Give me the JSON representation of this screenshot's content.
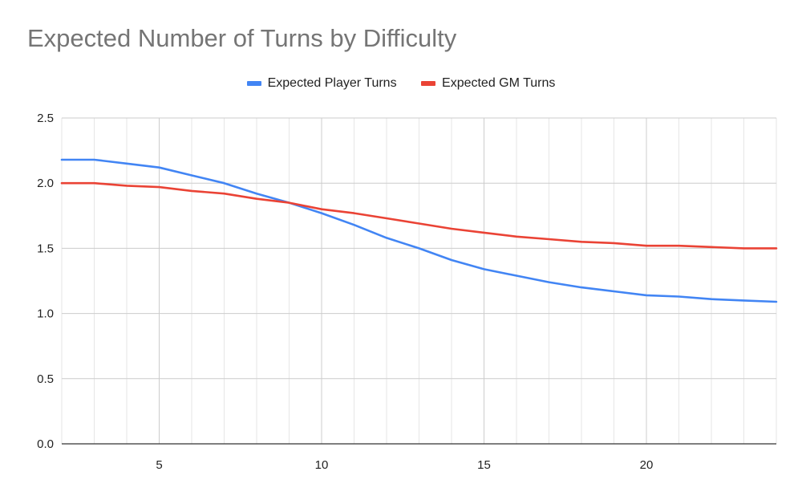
{
  "chart_data": {
    "type": "line",
    "title": "Expected Number of Turns by Difficulty",
    "xlabel": "",
    "ylabel": "",
    "xlim": [
      2,
      24
    ],
    "ylim": [
      0,
      2.5
    ],
    "x_ticks": [
      "5",
      "10",
      "15",
      "20"
    ],
    "y_ticks": [
      "0.0",
      "0.5",
      "1.0",
      "1.5",
      "2.0",
      "2.5"
    ],
    "grid": true,
    "legend_position": "top",
    "x": [
      2,
      3,
      4,
      5,
      6,
      7,
      8,
      9,
      10,
      11,
      12,
      13,
      14,
      15,
      16,
      17,
      18,
      19,
      20,
      21,
      22,
      23,
      24
    ],
    "series": [
      {
        "name": "Expected Player Turns",
        "color": "#4285f4",
        "values": [
          2.18,
          2.18,
          2.15,
          2.12,
          2.06,
          2.0,
          1.92,
          1.85,
          1.77,
          1.68,
          1.58,
          1.5,
          1.41,
          1.34,
          1.29,
          1.24,
          1.2,
          1.17,
          1.14,
          1.13,
          1.11,
          1.1,
          1.09
        ]
      },
      {
        "name": "Expected GM Turns",
        "color": "#ea4335",
        "values": [
          2.0,
          2.0,
          1.98,
          1.97,
          1.94,
          1.92,
          1.88,
          1.85,
          1.8,
          1.77,
          1.73,
          1.69,
          1.65,
          1.62,
          1.59,
          1.57,
          1.55,
          1.54,
          1.52,
          1.52,
          1.51,
          1.5,
          1.5
        ]
      }
    ]
  }
}
